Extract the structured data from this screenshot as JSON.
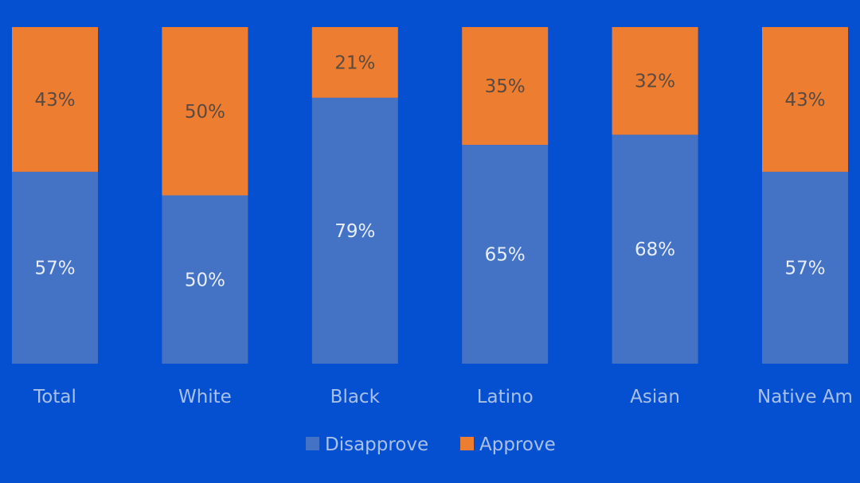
{
  "chart_data": {
    "type": "bar",
    "stacked": true,
    "percent_stacked": true,
    "categories": [
      "Total",
      "White",
      "Black",
      "Latino",
      "Asian",
      "Native Am"
    ],
    "series": [
      {
        "name": "Disapprove",
        "values": [
          57,
          50,
          79,
          65,
          68,
          57
        ],
        "labels": [
          "57%",
          "50%",
          "79%",
          "65%",
          "68%",
          "57%"
        ],
        "color": "#4472c4",
        "label_color": "#e8eef9"
      },
      {
        "name": "Approve",
        "values": [
          43,
          50,
          21,
          35,
          32,
          43
        ],
        "labels": [
          "43%",
          "50%",
          "21%",
          "35%",
          "32%",
          "43%"
        ],
        "color": "#ed7d31",
        "label_color": "#5a4a40"
      }
    ],
    "ylim": [
      0,
      100
    ],
    "grid": false,
    "legend_position": "bottom"
  },
  "colors": {
    "background": "#0550d0",
    "text_muted": "#a9c0e8"
  }
}
